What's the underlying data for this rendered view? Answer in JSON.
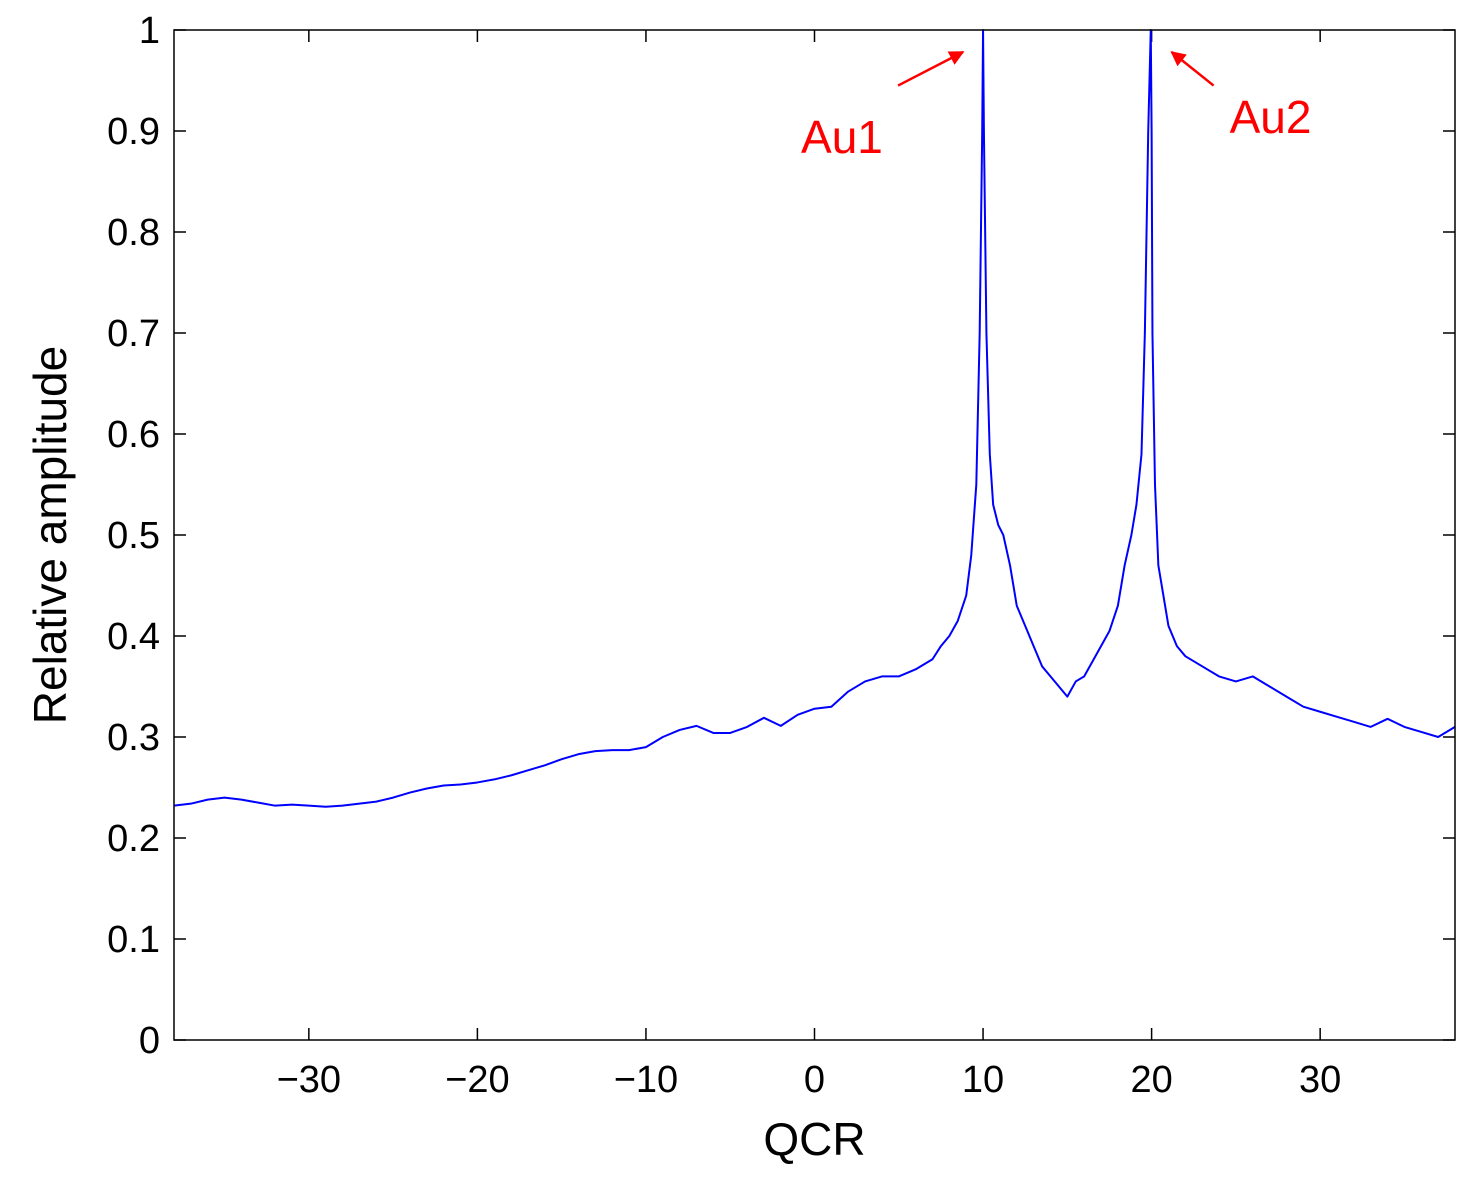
{
  "chart_data": {
    "type": "line",
    "title": "",
    "xlabel": "QCR",
    "ylabel": "Relative amplitude",
    "xlim": [
      -38,
      38
    ],
    "ylim": [
      0,
      1
    ],
    "xticks": [
      -30,
      -20,
      -10,
      0,
      10,
      20,
      30
    ],
    "xtick_labels": [
      "−30",
      "−20",
      "−10",
      "0",
      "10",
      "20",
      "30"
    ],
    "yticks": [
      0,
      0.1,
      0.2,
      0.3,
      0.4,
      0.5,
      0.6,
      0.7,
      0.8,
      0.9,
      1
    ],
    "ytick_labels": [
      "0",
      "0.1",
      "0.2",
      "0.3",
      "0.4",
      "0.5",
      "0.6",
      "0.7",
      "0.8",
      "0.9",
      "1"
    ],
    "grid": false,
    "legend": "none",
    "series": [
      {
        "color": "#0000ff",
        "x": [
          -38,
          -37,
          -36,
          -35,
          -34,
          -33,
          -32,
          -31,
          -30,
          -29,
          -28,
          -27,
          -26,
          -25,
          -24,
          -23,
          -22,
          -21,
          -20,
          -19,
          -18,
          -17,
          -16,
          -15,
          -14,
          -13,
          -12,
          -11,
          -10,
          -9,
          -8,
          -7,
          -6,
          -5,
          -4,
          -3,
          -2,
          -1,
          0,
          1,
          2,
          3,
          4,
          5,
          6,
          7,
          7.5,
          8,
          8.5,
          9,
          9.3,
          9.6,
          9.8,
          9.95,
          10,
          10.05,
          10.2,
          10.4,
          10.6,
          10.9,
          11.2,
          11.6,
          12,
          12.5,
          13,
          13.5,
          14,
          14.5,
          15,
          15.5,
          16,
          16.5,
          17,
          17.5,
          18,
          18.4,
          18.8,
          19.1,
          19.4,
          19.6,
          19.8,
          19.95,
          20,
          20.05,
          20.2,
          20.4,
          20.7,
          21,
          21.5,
          22,
          23,
          24,
          25,
          26,
          27,
          28,
          29,
          30,
          31,
          32,
          33,
          34,
          35,
          36,
          37,
          38
        ],
        "y": [
          0.232,
          0.234,
          0.238,
          0.24,
          0.238,
          0.235,
          0.232,
          0.233,
          0.232,
          0.231,
          0.232,
          0.234,
          0.236,
          0.24,
          0.245,
          0.249,
          0.252,
          0.253,
          0.255,
          0.258,
          0.262,
          0.267,
          0.272,
          0.278,
          0.283,
          0.286,
          0.287,
          0.287,
          0.29,
          0.3,
          0.307,
          0.311,
          0.304,
          0.304,
          0.31,
          0.319,
          0.311,
          0.322,
          0.328,
          0.33,
          0.345,
          0.355,
          0.36,
          0.36,
          0.367,
          0.377,
          0.39,
          0.4,
          0.415,
          0.44,
          0.48,
          0.55,
          0.7,
          0.9,
          1,
          0.9,
          0.7,
          0.58,
          0.53,
          0.51,
          0.5,
          0.47,
          0.43,
          0.41,
          0.39,
          0.37,
          0.36,
          0.35,
          0.34,
          0.355,
          0.36,
          0.375,
          0.39,
          0.405,
          0.43,
          0.47,
          0.5,
          0.53,
          0.58,
          0.7,
          0.9,
          1,
          0.9,
          0.7,
          0.55,
          0.47,
          0.44,
          0.41,
          0.39,
          0.38,
          0.37,
          0.36,
          0.355,
          0.36,
          0.35,
          0.34,
          0.33,
          0.325,
          0.32,
          0.315,
          0.31,
          0.318,
          0.31,
          0.305,
          0.3,
          0.31
        ]
      }
    ],
    "annotations": [
      {
        "text": "Au1",
        "color": "#ff0000",
        "x": 10,
        "y": 1
      },
      {
        "text": "Au2",
        "color": "#ff0000",
        "x": 20,
        "y": 1
      }
    ]
  }
}
